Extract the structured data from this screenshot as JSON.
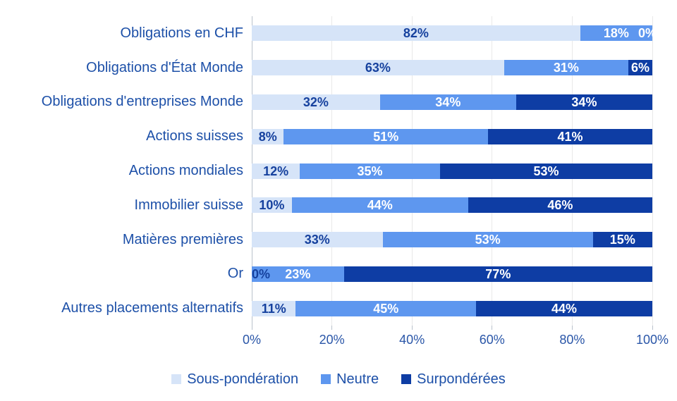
{
  "chart_data": {
    "type": "bar",
    "orientation": "horizontal",
    "stacked": true,
    "categories": [
      "Obligations en CHF",
      "Obligations d'État Monde",
      "Obligations d'entreprises Monde",
      "Actions suisses",
      "Actions mondiales",
      "Immobilier suisse",
      "Matières premières",
      "Or",
      "Autres placements alternatifs"
    ],
    "series": [
      {
        "name": "Sous-pondération",
        "color": "#d6e4f8",
        "label_color": "#16419e",
        "values": [
          82,
          63,
          32,
          8,
          12,
          10,
          33,
          0,
          11
        ]
      },
      {
        "name": "Neutre",
        "color": "#5e97ef",
        "label_color": "#ffffff",
        "values": [
          18,
          31,
          34,
          51,
          35,
          44,
          53,
          23,
          45
        ]
      },
      {
        "name": "Surpondérées",
        "color": "#0e3da4",
        "label_color": "#ffffff",
        "values": [
          0,
          6,
          34,
          41,
          53,
          46,
          15,
          77,
          44
        ]
      }
    ],
    "value_suffix": "%",
    "xlim": [
      0,
      100
    ],
    "x_ticks": [
      {
        "value": 0,
        "label": "0%"
      },
      {
        "value": 20,
        "label": "20%"
      },
      {
        "value": 40,
        "label": "40%"
      },
      {
        "value": 60,
        "label": "60%"
      },
      {
        "value": 80,
        "label": "80%"
      },
      {
        "value": 100,
        "label": "100%"
      }
    ],
    "grid": true,
    "legend_position": "bottom"
  },
  "colors": {
    "category_text": "#1d50a8",
    "tick_text": "#2a56a8",
    "gridline": "#e9e9e9",
    "axis_line": "#b9c2cc",
    "background": "#ffffff"
  }
}
